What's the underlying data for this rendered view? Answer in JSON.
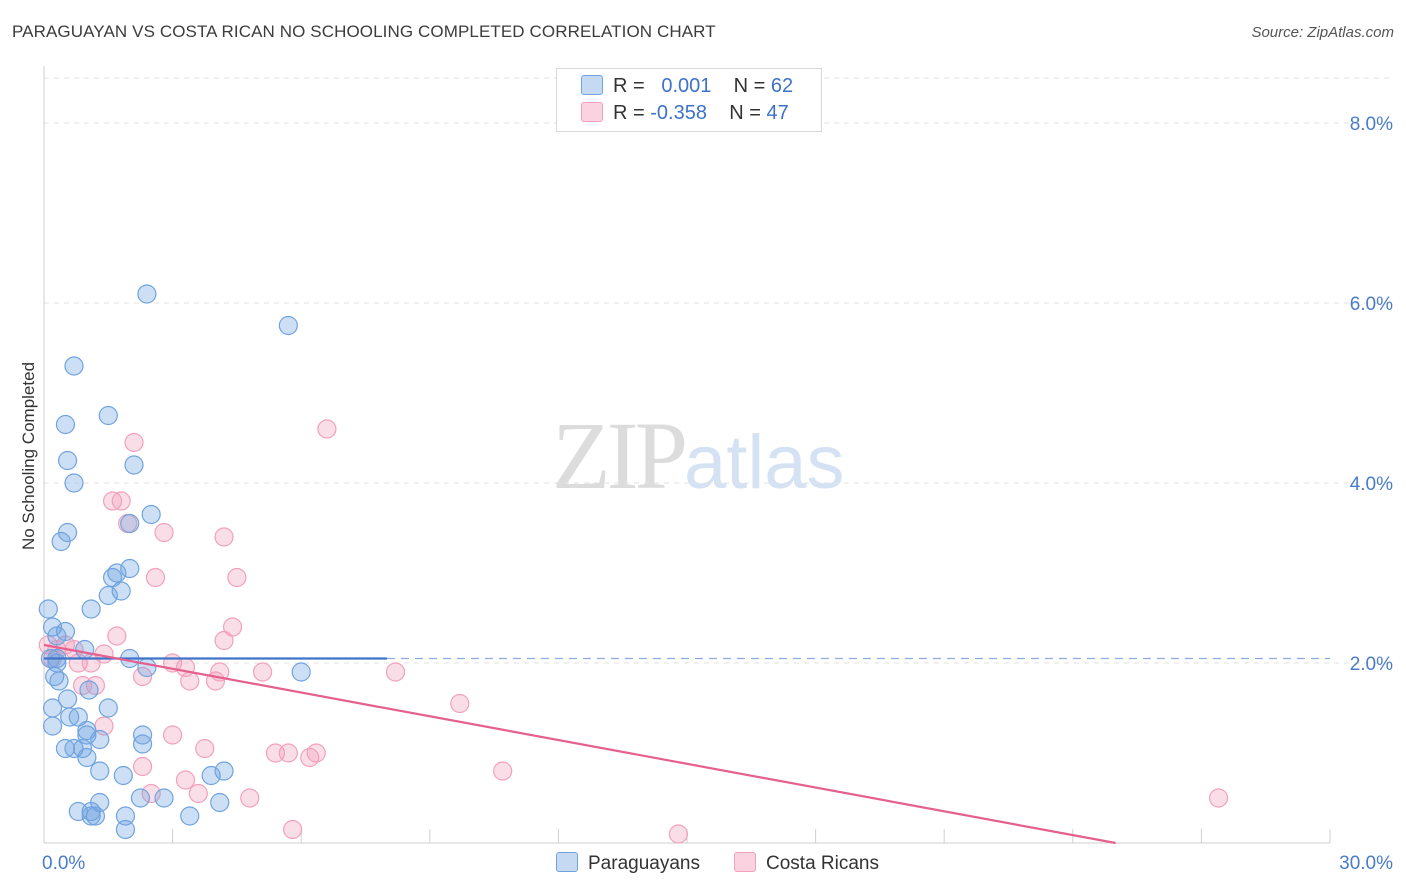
{
  "title": "PARAGUAYAN VS COSTA RICAN NO SCHOOLING COMPLETED CORRELATION CHART",
  "source": "Source: ZipAtlas.com",
  "watermark": {
    "zip": "ZIP",
    "atlas": "atlas"
  },
  "legend": {
    "row1": {
      "r_label": "R = ",
      "r_value": "0.001",
      "n_label": "N = ",
      "n_value": "62"
    },
    "row2": {
      "r_label": "R = ",
      "r_value": "-0.358",
      "n_label": "N = ",
      "n_value": "47"
    }
  },
  "chart_data": {
    "type": "scatter",
    "title": "PARAGUAYAN VS COSTA RICAN NO SCHOOLING COMPLETED CORRELATION CHART",
    "xlabel": "",
    "ylabel": "No Schooling Completed",
    "xlim": [
      0,
      30
    ],
    "ylim": [
      0,
      8.5
    ],
    "x_tick_labels": [
      "0.0%",
      "30.0%"
    ],
    "y_ticks": [
      2,
      4,
      6,
      8
    ],
    "y_tick_labels": [
      "2.0%",
      "4.0%",
      "6.0%",
      "8.0%"
    ],
    "colors": {
      "paraguayans": "#6fa3e0",
      "costa_ricans": "#f2a0bb",
      "blue_line": "#3f74c9",
      "pink_line": "#e5608e"
    },
    "series": [
      {
        "name": "Paraguayans",
        "r": 0.001,
        "n": 62,
        "trend": {
          "x": [
            0,
            8
          ],
          "y": [
            2.05,
            2.05
          ],
          "dashed_to": 30
        },
        "points": [
          [
            2.4,
            6.1
          ],
          [
            5.7,
            5.75
          ],
          [
            0.7,
            5.3
          ],
          [
            1.5,
            4.75
          ],
          [
            0.5,
            4.65
          ],
          [
            0.55,
            4.25
          ],
          [
            2.1,
            4.2
          ],
          [
            0.7,
            4.0
          ],
          [
            2.5,
            3.65
          ],
          [
            2.0,
            3.55
          ],
          [
            0.4,
            3.35
          ],
          [
            0.55,
            3.45
          ],
          [
            2.0,
            3.05
          ],
          [
            1.7,
            3.0
          ],
          [
            1.6,
            2.95
          ],
          [
            1.8,
            2.8
          ],
          [
            1.5,
            2.75
          ],
          [
            1.1,
            2.6
          ],
          [
            0.1,
            2.6
          ],
          [
            0.2,
            2.4
          ],
          [
            0.5,
            2.35
          ],
          [
            0.3,
            2.3
          ],
          [
            0.95,
            2.15
          ],
          [
            0.15,
            2.05
          ],
          [
            2.0,
            2.05
          ],
          [
            0.3,
            2.0
          ],
          [
            2.4,
            1.95
          ],
          [
            6.0,
            1.9
          ],
          [
            0.25,
            1.85
          ],
          [
            0.35,
            1.8
          ],
          [
            1.05,
            1.7
          ],
          [
            0.55,
            1.6
          ],
          [
            1.5,
            1.5
          ],
          [
            0.2,
            1.5
          ],
          [
            0.8,
            1.4
          ],
          [
            0.6,
            1.4
          ],
          [
            0.2,
            1.3
          ],
          [
            1.0,
            1.25
          ],
          [
            2.3,
            1.2
          ],
          [
            1.0,
            1.2
          ],
          [
            1.3,
            1.15
          ],
          [
            2.3,
            1.1
          ],
          [
            0.5,
            1.05
          ],
          [
            0.9,
            1.05
          ],
          [
            0.7,
            1.05
          ],
          [
            1.0,
            0.95
          ],
          [
            4.2,
            0.8
          ],
          [
            1.3,
            0.8
          ],
          [
            1.85,
            0.75
          ],
          [
            3.9,
            0.75
          ],
          [
            2.25,
            0.5
          ],
          [
            2.8,
            0.5
          ],
          [
            4.1,
            0.45
          ],
          [
            1.3,
            0.45
          ],
          [
            0.8,
            0.35
          ],
          [
            1.1,
            0.35
          ],
          [
            1.9,
            0.3
          ],
          [
            1.2,
            0.3
          ],
          [
            3.4,
            0.3
          ],
          [
            1.1,
            0.3
          ],
          [
            1.9,
            0.15
          ],
          [
            0.3,
            2.05
          ]
        ]
      },
      {
        "name": "Costa Ricans",
        "r": -0.358,
        "n": 47,
        "trend": {
          "x": [
            0,
            25
          ],
          "y": [
            2.2,
            0.0
          ]
        },
        "points": [
          [
            6.6,
            4.6
          ],
          [
            2.1,
            4.45
          ],
          [
            1.6,
            3.8
          ],
          [
            1.8,
            3.8
          ],
          [
            1.95,
            3.55
          ],
          [
            2.8,
            3.45
          ],
          [
            4.2,
            3.4
          ],
          [
            2.6,
            2.95
          ],
          [
            4.5,
            2.95
          ],
          [
            4.4,
            2.4
          ],
          [
            1.7,
            2.3
          ],
          [
            4.2,
            2.25
          ],
          [
            0.1,
            2.2
          ],
          [
            0.3,
            2.15
          ],
          [
            0.5,
            2.2
          ],
          [
            0.7,
            2.15
          ],
          [
            0.2,
            2.05
          ],
          [
            1.4,
            2.1
          ],
          [
            3.0,
            2.0
          ],
          [
            3.3,
            1.95
          ],
          [
            0.8,
            2.0
          ],
          [
            1.1,
            2.0
          ],
          [
            4.1,
            1.9
          ],
          [
            5.1,
            1.9
          ],
          [
            8.2,
            1.9
          ],
          [
            2.3,
            1.85
          ],
          [
            3.4,
            1.8
          ],
          [
            4.0,
            1.8
          ],
          [
            1.2,
            1.75
          ],
          [
            0.9,
            1.75
          ],
          [
            9.7,
            1.55
          ],
          [
            1.4,
            1.3
          ],
          [
            3.0,
            1.2
          ],
          [
            3.75,
            1.05
          ],
          [
            5.4,
            1.0
          ],
          [
            5.7,
            1.0
          ],
          [
            6.2,
            0.95
          ],
          [
            6.35,
            1.0
          ],
          [
            2.3,
            0.85
          ],
          [
            10.7,
            0.8
          ],
          [
            3.3,
            0.7
          ],
          [
            2.5,
            0.55
          ],
          [
            3.6,
            0.55
          ],
          [
            4.8,
            0.5
          ],
          [
            27.4,
            0.5
          ],
          [
            5.8,
            0.15
          ],
          [
            14.8,
            0.1
          ]
        ]
      }
    ]
  },
  "bottom_legend": {
    "paraguayans": "Paraguayans",
    "costa_ricans": "Costa Ricans"
  }
}
